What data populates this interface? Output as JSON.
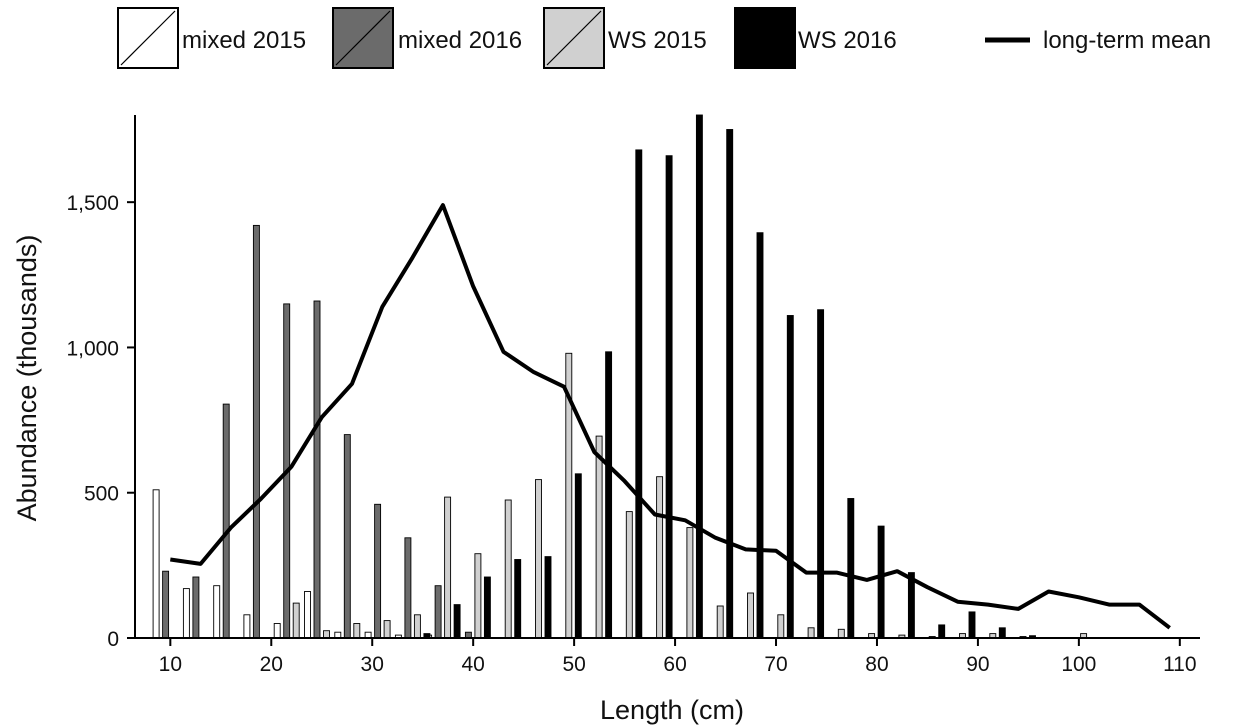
{
  "chart_data": {
    "type": "bar",
    "title": "",
    "xlabel": "Length (cm)",
    "ylabel": "Abundance (thousands)",
    "xlim": [
      6.5,
      112
    ],
    "ylim": [
      0,
      1800
    ],
    "xticks": [
      "10",
      "20",
      "30",
      "40",
      "50",
      "60",
      "70",
      "80",
      "90",
      "100",
      "110"
    ],
    "yticks": [
      "0",
      "500",
      "1,000",
      "1,500"
    ],
    "x": [
      10,
      13,
      16,
      19,
      22,
      25,
      28,
      31,
      34,
      37,
      40,
      43,
      46,
      49,
      52,
      55,
      58,
      61,
      64,
      67,
      70,
      73,
      76,
      79,
      82,
      85,
      88,
      91,
      94,
      97,
      100
    ],
    "series": [
      {
        "name": "mixed 2015",
        "kind": "bar",
        "color": "#ffffff",
        "values": [
          510,
          170,
          180,
          80,
          50,
          160,
          20,
          20,
          10,
          10,
          0,
          0,
          0,
          0,
          0,
          0,
          0,
          0,
          0,
          0,
          0,
          0,
          0,
          0,
          0,
          0,
          0,
          0,
          0,
          0,
          0
        ]
      },
      {
        "name": "mixed 2016",
        "kind": "bar",
        "color": "#6b6b6b",
        "values": [
          230,
          210,
          805,
          1420,
          1150,
          1160,
          700,
          460,
          345,
          180,
          20,
          0,
          0,
          0,
          0,
          0,
          0,
          0,
          0,
          0,
          0,
          0,
          0,
          0,
          0,
          0,
          0,
          0,
          0,
          0,
          0
        ]
      },
      {
        "name": "WS 2015",
        "kind": "bar",
        "color": "#d0d0d0",
        "values": [
          0,
          0,
          0,
          0,
          120,
          25,
          50,
          60,
          80,
          485,
          290,
          475,
          545,
          980,
          695,
          435,
          555,
          380,
          110,
          155,
          80,
          35,
          30,
          15,
          10,
          5,
          15,
          15,
          5,
          0,
          15
        ]
      },
      {
        "name": "WS 2016",
        "kind": "bar",
        "color": "#000000",
        "values": [
          0,
          0,
          0,
          0,
          0,
          0,
          0,
          0,
          15,
          115,
          210,
          270,
          280,
          565,
          985,
          1680,
          1660,
          1800,
          1750,
          1395,
          1110,
          1130,
          480,
          385,
          225,
          45,
          90,
          35,
          8,
          0,
          0
        ]
      },
      {
        "name": "long-term mean",
        "kind": "line",
        "color": "#000000",
        "x": [
          10,
          13,
          16,
          19,
          22,
          25,
          28,
          31,
          34,
          37,
          40,
          43,
          46,
          49,
          52,
          55,
          58,
          61,
          64,
          67,
          70,
          73,
          76,
          79,
          82,
          85,
          88,
          91,
          94,
          97,
          100,
          103,
          106,
          109
        ],
        "values": [
          270,
          255,
          380,
          480,
          590,
          760,
          875,
          1140,
          1310,
          1490,
          1210,
          985,
          915,
          865,
          640,
          540,
          425,
          405,
          345,
          305,
          300,
          225,
          225,
          200,
          230,
          175,
          125,
          115,
          100,
          160,
          140,
          115,
          115,
          35
        ]
      }
    ],
    "legend": {
      "placement": "top",
      "entries": [
        "mixed 2015",
        "mixed 2016",
        "WS 2015",
        "WS 2016",
        "long-term mean"
      ]
    },
    "grid": false
  }
}
